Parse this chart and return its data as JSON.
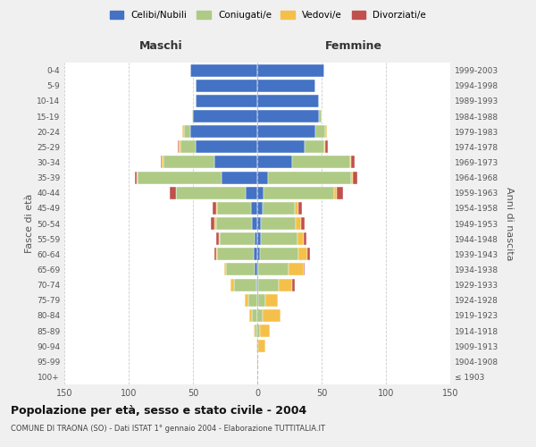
{
  "age_groups": [
    "100+",
    "95-99",
    "90-94",
    "85-89",
    "80-84",
    "75-79",
    "70-74",
    "65-69",
    "60-64",
    "55-59",
    "50-54",
    "45-49",
    "40-44",
    "35-39",
    "30-34",
    "25-29",
    "20-24",
    "15-19",
    "10-14",
    "5-9",
    "0-4"
  ],
  "birth_years": [
    "≤ 1903",
    "1904-1908",
    "1909-1913",
    "1914-1918",
    "1919-1923",
    "1924-1928",
    "1929-1933",
    "1934-1938",
    "1939-1943",
    "1944-1948",
    "1949-1953",
    "1954-1958",
    "1959-1963",
    "1964-1968",
    "1969-1973",
    "1974-1978",
    "1979-1983",
    "1984-1988",
    "1989-1993",
    "1994-1998",
    "1999-2003"
  ],
  "maschi_celibi": [
    0,
    0,
    0,
    0,
    0,
    0,
    1,
    2,
    3,
    2,
    4,
    5,
    9,
    28,
    33,
    48,
    52,
    50,
    48,
    48,
    52
  ],
  "maschi_coniugati": [
    0,
    0,
    1,
    2,
    4,
    7,
    17,
    22,
    28,
    27,
    28,
    26,
    54,
    65,
    40,
    12,
    5,
    1,
    0,
    0,
    0
  ],
  "maschi_vedovi": [
    0,
    0,
    0,
    1,
    2,
    3,
    3,
    2,
    1,
    1,
    1,
    1,
    0,
    1,
    1,
    1,
    1,
    0,
    0,
    0,
    0
  ],
  "maschi_divorziati": [
    0,
    0,
    0,
    0,
    0,
    0,
    0,
    0,
    1,
    2,
    3,
    3,
    5,
    1,
    1,
    1,
    0,
    0,
    0,
    0,
    0
  ],
  "femmine_nubili": [
    0,
    0,
    0,
    0,
    0,
    1,
    1,
    1,
    2,
    3,
    3,
    4,
    5,
    8,
    27,
    37,
    45,
    48,
    48,
    45,
    52
  ],
  "femmine_coniugate": [
    0,
    0,
    1,
    2,
    4,
    5,
    16,
    23,
    30,
    28,
    27,
    25,
    55,
    65,
    45,
    15,
    8,
    2,
    0,
    0,
    0
  ],
  "femmine_vedove": [
    0,
    1,
    5,
    8,
    14,
    10,
    10,
    12,
    7,
    5,
    4,
    3,
    2,
    1,
    1,
    1,
    1,
    0,
    0,
    0,
    0
  ],
  "femmine_divorziate": [
    0,
    0,
    0,
    0,
    0,
    0,
    2,
    1,
    2,
    2,
    3,
    3,
    5,
    4,
    3,
    2,
    0,
    0,
    0,
    0,
    0
  ],
  "color_celibi": "#4472C4",
  "color_coniugati": "#AECA85",
  "color_vedovi": "#F5C04A",
  "color_divorziati": "#C0504D",
  "xlim": 150,
  "title": "Popolazione per età, sesso e stato civile - 2004",
  "subtitle": "COMUNE DI TRAONA (SO) - Dati ISTAT 1° gennaio 2004 - Elaborazione TUTTITALIA.IT",
  "ylabel_left": "Fasce di età",
  "ylabel_right": "Anni di nascita",
  "label_maschi": "Maschi",
  "label_femmine": "Femmine",
  "legend_labels": [
    "Celibi/Nubili",
    "Coniugati/e",
    "Vedovi/e",
    "Divorziati/e"
  ],
  "bg_color": "#f0f0f0",
  "plot_bg_color": "#ffffff",
  "grid_color": "#cccccc",
  "tick_color": "#555555"
}
